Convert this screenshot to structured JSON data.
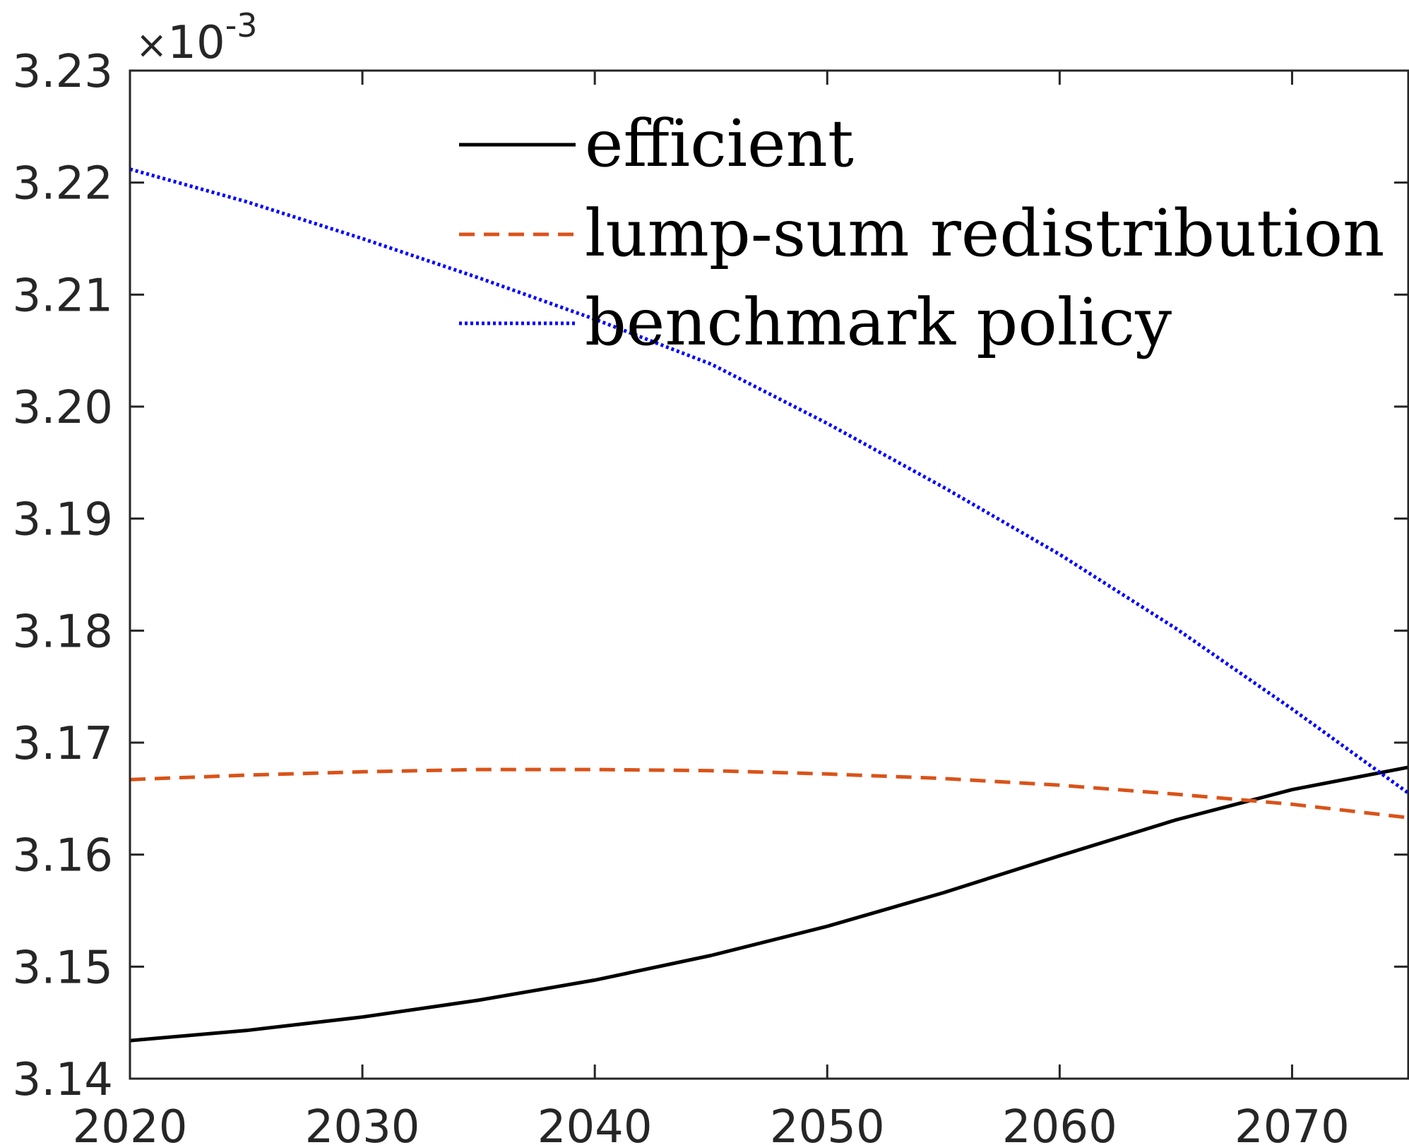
{
  "chart_data": {
    "type": "line",
    "title": "",
    "xlabel": "",
    "ylabel": "",
    "xlim": [
      2020,
      2075
    ],
    "ylim": [
      3.14,
      3.23
    ],
    "y_multiplier": {
      "times": "×",
      "base": "10",
      "exponent": "-3"
    },
    "xticks": [
      2020,
      2030,
      2040,
      2050,
      2060,
      2070
    ],
    "xtick_labels": [
      "2020",
      "2030",
      "2040",
      "2050",
      "2060",
      "2070"
    ],
    "yticks": [
      3.14,
      3.15,
      3.16,
      3.17,
      3.18,
      3.19,
      3.2,
      3.21,
      3.22,
      3.23
    ],
    "ytick_labels": [
      "3.14",
      "3.15",
      "3.16",
      "3.17",
      "3.18",
      "3.19",
      "3.20",
      "3.21",
      "3.22",
      "3.23"
    ],
    "grid": false,
    "box": true,
    "legend_position": "top",
    "x": [
      2020,
      2025,
      2030,
      2035,
      2040,
      2045,
      2050,
      2055,
      2060,
      2065,
      2070,
      2075
    ],
    "series": [
      {
        "name": "efficient",
        "color": "#000000",
        "dash": "solid",
        "values": [
          3.1434,
          3.1443,
          3.1455,
          3.147,
          3.1488,
          3.151,
          3.1536,
          3.1566,
          3.1599,
          3.1631,
          3.1658,
          3.1678
        ]
      },
      {
        "name": "lump-sum redistribution",
        "color": "#d95319",
        "dash": "dashed",
        "values": [
          3.1667,
          3.1671,
          3.1674,
          3.1676,
          3.1676,
          3.1675,
          3.1672,
          3.1668,
          3.1662,
          3.1654,
          3.1645,
          3.1633
        ]
      },
      {
        "name": "benchmark policy",
        "color": "#0000ff",
        "dash": "dotted",
        "values": [
          3.2212,
          3.2183,
          3.215,
          3.2115,
          3.2078,
          3.2038,
          3.1985,
          3.1928,
          3.1868,
          3.1802,
          3.173,
          3.1655
        ]
      }
    ]
  }
}
